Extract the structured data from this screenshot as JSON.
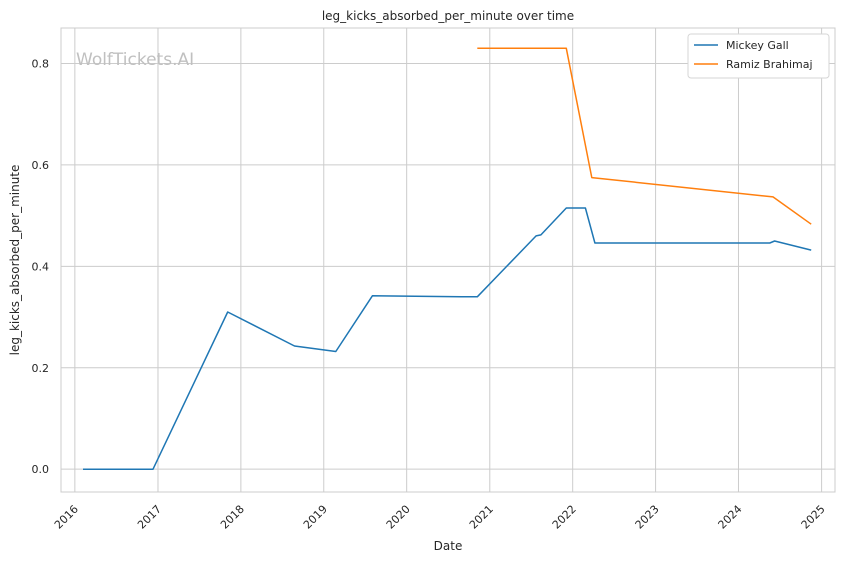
{
  "chart_data": {
    "type": "line",
    "title": "leg_kicks_absorbed_per_minute over time",
    "xlabel": "Date",
    "ylabel": "leg_kicks_absorbed_per_minute",
    "watermark": "WolfTickets.AI",
    "x_ticks": [
      "2016",
      "2017",
      "2018",
      "2019",
      "2020",
      "2021",
      "2022",
      "2023",
      "2024",
      "2025"
    ],
    "y_ticks": [
      "0.0",
      "0.2",
      "0.4",
      "0.6",
      "0.8"
    ],
    "xlim": [
      "2015-11-01",
      "2025-03-01"
    ],
    "ylim": [
      -0.045,
      0.87
    ],
    "grid": true,
    "legend_position": "top-right",
    "series": [
      {
        "name": "Mickey Gall",
        "color": "#1f77b4",
        "x": [
          "2016-02-06",
          "2016-12-10",
          "2017-11-04",
          "2018-08-25",
          "2019-02-23",
          "2019-08-03",
          "2020-08-29",
          "2020-11-07",
          "2021-07-24",
          "2021-08-14",
          "2021-12-04",
          "2022-02-26",
          "2022-04-09",
          "2024-05-18",
          "2024-06-08",
          "2024-11-16"
        ],
        "values": [
          0.0,
          0.0,
          0.31,
          0.243,
          0.232,
          0.342,
          0.34,
          0.34,
          0.46,
          0.462,
          0.515,
          0.515,
          0.446,
          0.446,
          0.45,
          0.432
        ]
      },
      {
        "name": "Ramiz Brahimaj",
        "color": "#ff7f0e",
        "x": [
          "2020-11-07",
          "2021-12-04",
          "2022-03-26",
          "2024-06-01",
          "2024-11-16"
        ],
        "values": [
          0.83,
          0.83,
          0.575,
          0.537,
          0.483
        ]
      }
    ]
  }
}
